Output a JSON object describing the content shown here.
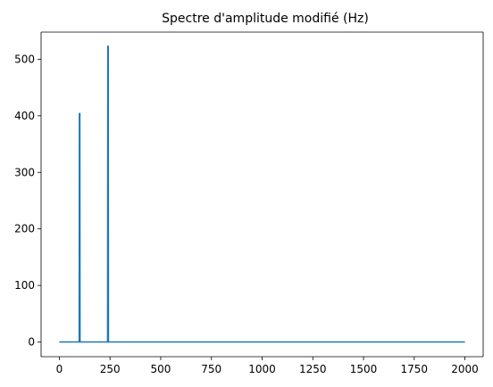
{
  "chart_data": {
    "type": "line",
    "title": "Spectre d'amplitude modifié (Hz)",
    "xlabel": "",
    "ylabel": "",
    "xlim": [
      -90,
      2090
    ],
    "ylim": [
      -26,
      548
    ],
    "grid": false,
    "x_ticks": [
      0,
      250,
      500,
      750,
      1000,
      1250,
      1500,
      1750,
      2000
    ],
    "x_tick_labels": [
      "0",
      "250",
      "500",
      "750",
      "1000",
      "1250",
      "1500",
      "1750",
      "2000"
    ],
    "y_ticks": [
      0,
      100,
      200,
      300,
      400,
      500
    ],
    "y_tick_labels": [
      "0",
      "100",
      "200",
      "300",
      "400",
      "500"
    ],
    "series": [
      {
        "color": "#1f77b4",
        "x": [
          0,
          98,
          99,
          100,
          101,
          102,
          238,
          239,
          240,
          241,
          242,
          2000
        ],
        "y": [
          0,
          0,
          404,
          404,
          404,
          0,
          0,
          523,
          523,
          523,
          0,
          0
        ]
      }
    ]
  }
}
